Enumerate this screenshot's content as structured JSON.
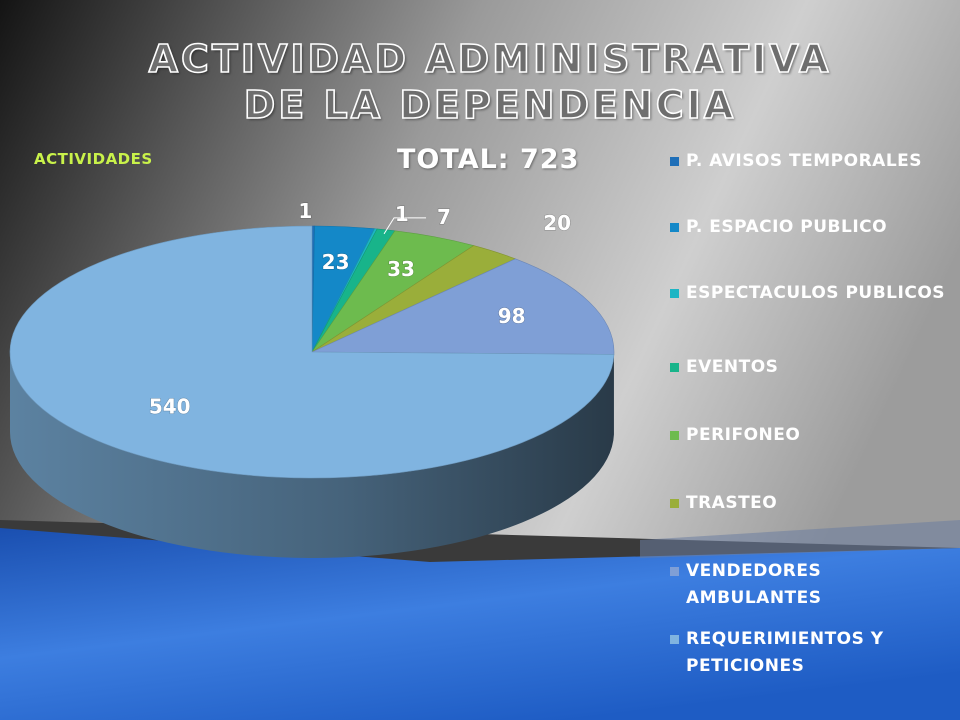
{
  "slide": {
    "title": "ACTIVIDAD ADMINISTRATIVA DE LA DEPENDENCIA",
    "colors": {
      "bg_top": "#f2f2f2",
      "bg_dark": "#1c1c1c",
      "band_blue": "#1f5fc8"
    }
  },
  "chart_data": {
    "type": "pie",
    "title": "TOTAL: 723",
    "ylabel": "ACTIVIDADES",
    "legend_position": "right",
    "categories": [
      "P. AVISOS TEMPORALES",
      "P. ESPACIO PUBLICO",
      "ESPECTACULOS PUBLICOS",
      "EVENTOS",
      "PERIFONEO",
      "TRASTEO",
      "VENDEDORES AMBULANTES",
      "REQUERIMIENTOS Y PETICIONES"
    ],
    "values": [
      1,
      23,
      1,
      7,
      33,
      20,
      98,
      540
    ],
    "labels": [
      "1",
      "23",
      "1",
      "7",
      "33",
      "20",
      "98",
      "540"
    ],
    "colors": [
      "#1f6fb8",
      "#1488c8",
      "#1db5c4",
      "#18b48a",
      "#6dbb4e",
      "#9aae3a",
      "#7f9fd6",
      "#80b4e0"
    ]
  }
}
